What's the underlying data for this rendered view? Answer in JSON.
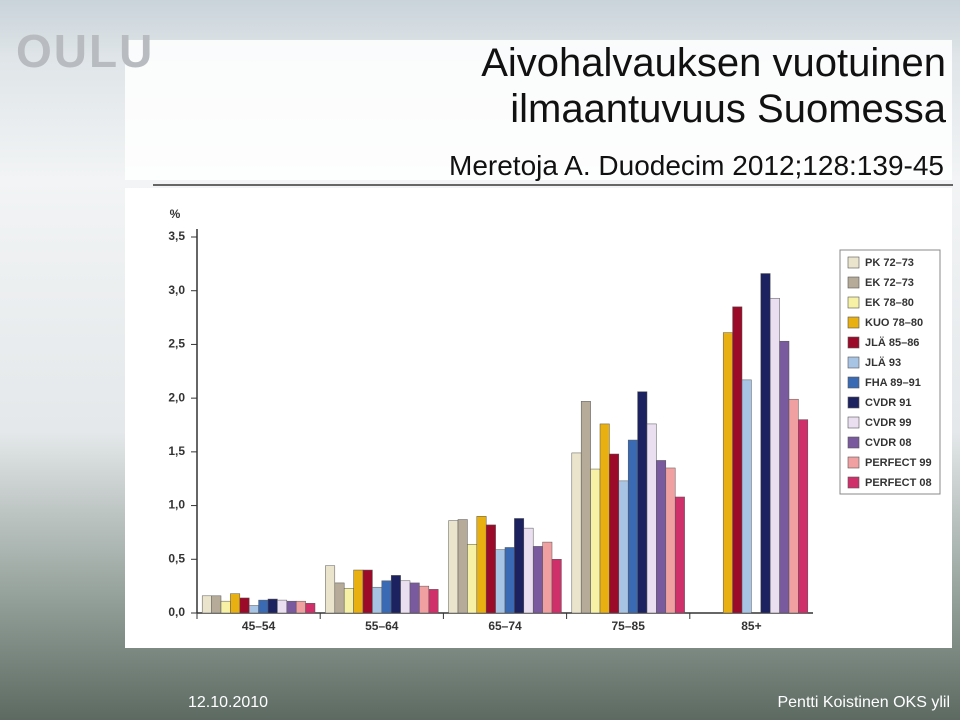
{
  "slide": {
    "logo": "OULU",
    "title": "Aivohalvauksen vuotuinen ilmaantuvuus Suomessa",
    "subtitle": "Meretoja A. Duodecim 2012;128:139-45",
    "date": "12.10.2010",
    "author": "Pentti Koistinen OKS ylil"
  },
  "chart_data": {
    "type": "bar",
    "y_label": "%",
    "categories": [
      "45–54",
      "55–64",
      "65–74",
      "75–85",
      "85+"
    ],
    "ylim": [
      0,
      3.5
    ],
    "yticks": [
      {
        "value": 0,
        "label": "0,0"
      },
      {
        "value": 0.5,
        "label": "0,5"
      },
      {
        "value": 1,
        "label": "1,0"
      },
      {
        "value": 1.5,
        "label": "1,5"
      },
      {
        "value": 2,
        "label": "2,0"
      },
      {
        "value": 2.5,
        "label": "2,5"
      },
      {
        "value": 3,
        "label": "3,0"
      },
      {
        "value": 3.5,
        "label": "3,5"
      }
    ],
    "grid": false,
    "legend": "top-right",
    "series": [
      {
        "name": "PK 72–73",
        "color": "#ebe4cc",
        "values": [
          0.16,
          0.44,
          0.86,
          1.49,
          null
        ]
      },
      {
        "name": "EK 72–73",
        "color": "#b5ab98",
        "values": [
          0.16,
          0.28,
          0.87,
          1.97,
          null
        ]
      },
      {
        "name": "EK 78–80",
        "color": "#f6f1a4",
        "values": [
          0.11,
          0.23,
          0.64,
          1.34,
          null
        ]
      },
      {
        "name": "KUO 78–80",
        "color": "#e8b010",
        "values": [
          0.18,
          0.4,
          0.9,
          1.76,
          2.61
        ]
      },
      {
        "name": "JLÄ 85–86",
        "color": "#9c0a2a",
        "values": [
          0.14,
          0.4,
          0.82,
          1.48,
          2.85
        ]
      },
      {
        "name": "JLÄ 93",
        "color": "#a8c4e4",
        "values": [
          0.07,
          0.24,
          0.59,
          1.23,
          2.17
        ]
      },
      {
        "name": "FHA 89–91",
        "color": "#3a6ab4",
        "values": [
          0.12,
          0.3,
          0.61,
          1.61,
          null
        ]
      },
      {
        "name": "CVDR 91",
        "color": "#1c2260",
        "values": [
          0.13,
          0.35,
          0.88,
          2.06,
          3.16
        ]
      },
      {
        "name": "CVDR 99",
        "color": "#eadff0",
        "values": [
          0.12,
          0.3,
          0.79,
          1.76,
          2.93
        ]
      },
      {
        "name": "CVDR 08",
        "color": "#7a5a9e",
        "values": [
          0.11,
          0.28,
          0.62,
          1.42,
          2.53
        ]
      },
      {
        "name": "PERFECT 99",
        "color": "#f0a0a0",
        "values": [
          0.11,
          0.25,
          0.66,
          1.35,
          1.99
        ]
      },
      {
        "name": "PERFECT 08",
        "color": "#d0306a",
        "values": [
          0.09,
          0.22,
          0.5,
          1.08,
          1.8
        ]
      }
    ]
  }
}
